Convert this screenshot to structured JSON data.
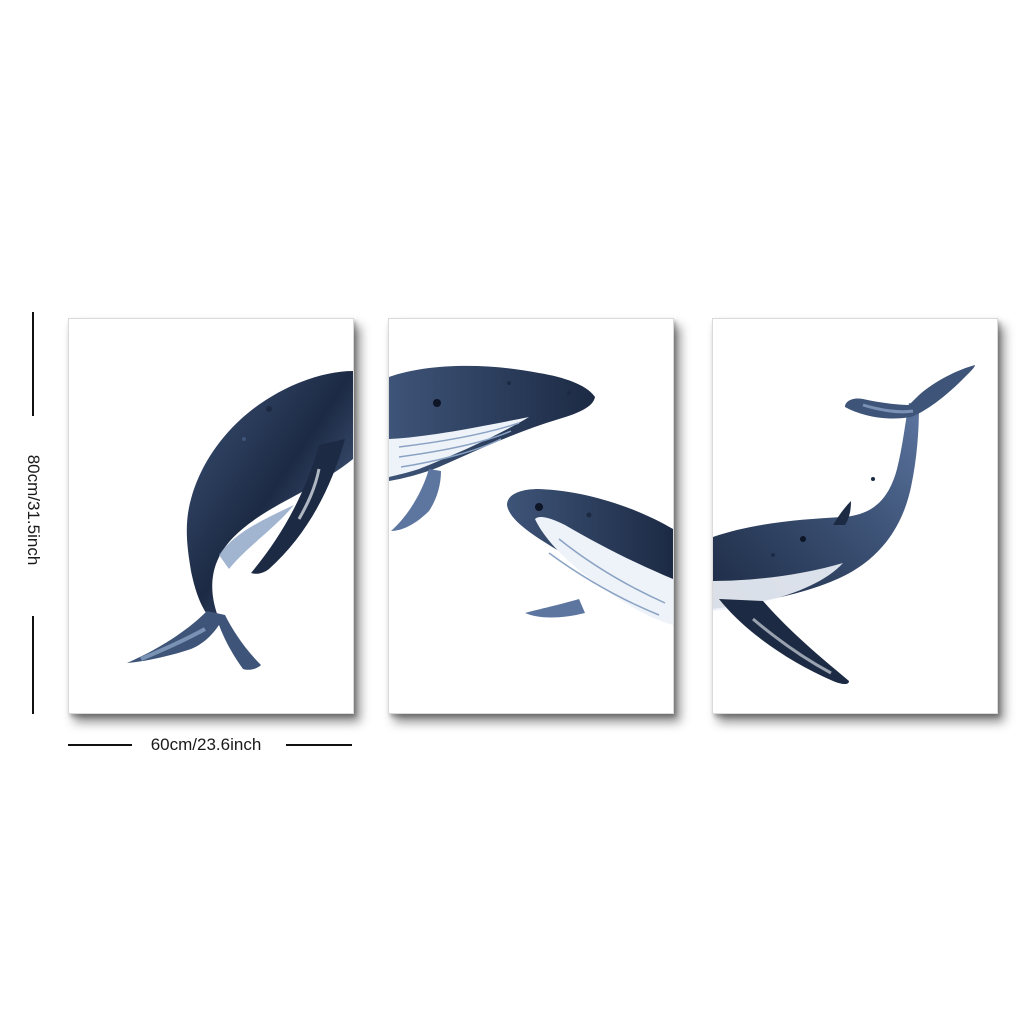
{
  "product": {
    "panel_count": 3,
    "height_dimension": "80cm/31.5inch",
    "width_dimension": "60cm/23.6inch",
    "artwork_icon": "watercolor-humpback-whale",
    "colors": {
      "ink_dark": "#1c2a44",
      "ink_mid": "#3e5478",
      "ink_light": "#8aa3c4",
      "belly": "#eef3f9",
      "frame_shadow": "#555555"
    }
  }
}
